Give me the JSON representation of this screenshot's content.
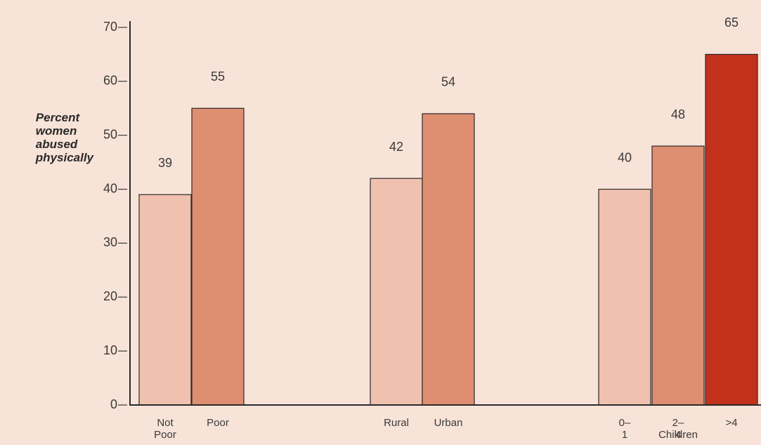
{
  "chart_data": {
    "type": "bar",
    "y_label": "Percent women abused physically",
    "categories": [
      "Not Poor",
      "Poor",
      "Rural",
      "Urban",
      "0–1",
      "2–4",
      ">4"
    ],
    "group_label": "Children",
    "values": [
      39,
      55,
      42,
      54,
      40,
      48,
      65
    ],
    "colors": [
      "#f0c1ae",
      "#df8f71",
      "#f0c1ae",
      "#df8f71",
      "#f0c1ae",
      "#df8f71",
      "#c1311c"
    ],
    "ylim": [
      0,
      70
    ],
    "yticks": [
      0,
      10,
      20,
      30,
      40,
      50,
      60,
      70
    ]
  }
}
